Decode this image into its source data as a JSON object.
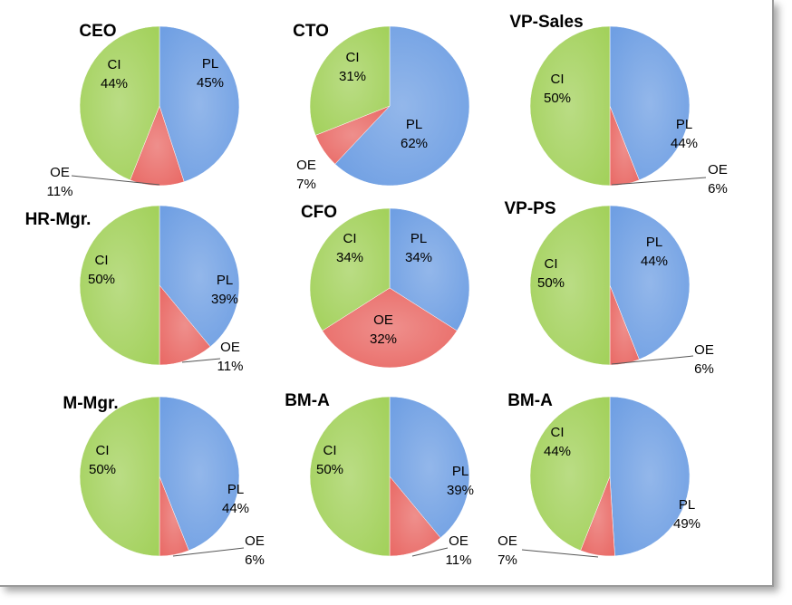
{
  "colors": {
    "PL": "#6f9fe3",
    "OE": "#e96a66",
    "CI": "#a3d15c"
  },
  "chart_data": [
    {
      "type": "pie",
      "title": "CEO",
      "slices": [
        {
          "label": "PL",
          "value": 45,
          "text": "45%"
        },
        {
          "label": "OE",
          "value": 11,
          "text": "11%"
        },
        {
          "label": "CI",
          "value": 44,
          "text": "44%"
        }
      ]
    },
    {
      "type": "pie",
      "title": "CTO",
      "slices": [
        {
          "label": "PL",
          "value": 62,
          "text": "62%"
        },
        {
          "label": "OE",
          "value": 7,
          "text": "7%"
        },
        {
          "label": "CI",
          "value": 31,
          "text": "31%"
        }
      ]
    },
    {
      "type": "pie",
      "title": "VP-Sales",
      "slices": [
        {
          "label": "PL",
          "value": 44,
          "text": "44%"
        },
        {
          "label": "OE",
          "value": 6,
          "text": "6%"
        },
        {
          "label": "CI",
          "value": 50,
          "text": "50%"
        }
      ]
    },
    {
      "type": "pie",
      "title": "HR-Mgr.",
      "slices": [
        {
          "label": "PL",
          "value": 39,
          "text": "39%"
        },
        {
          "label": "OE",
          "value": 11,
          "text": "11%"
        },
        {
          "label": "CI",
          "value": 50,
          "text": "50%"
        }
      ]
    },
    {
      "type": "pie",
      "title": "CFO",
      "slices": [
        {
          "label": "PL",
          "value": 34,
          "text": "34%"
        },
        {
          "label": "OE",
          "value": 32,
          "text": "32%"
        },
        {
          "label": "CI",
          "value": 34,
          "text": "34%"
        }
      ]
    },
    {
      "type": "pie",
      "title": "VP-PS",
      "slices": [
        {
          "label": "PL",
          "value": 44,
          "text": "44%"
        },
        {
          "label": "OE",
          "value": 6,
          "text": "6%"
        },
        {
          "label": "CI",
          "value": 50,
          "text": "50%"
        }
      ]
    },
    {
      "type": "pie",
      "title": "M-Mgr.",
      "slices": [
        {
          "label": "PL",
          "value": 44,
          "text": "44%"
        },
        {
          "label": "OE",
          "value": 6,
          "text": "6%"
        },
        {
          "label": "CI",
          "value": 50,
          "text": "50%"
        }
      ]
    },
    {
      "type": "pie",
      "title": "BM-A",
      "slices": [
        {
          "label": "PL",
          "value": 39,
          "text": "39%"
        },
        {
          "label": "OE",
          "value": 11,
          "text": "11%"
        },
        {
          "label": "CI",
          "value": 50,
          "text": "50%"
        }
      ]
    },
    {
      "type": "pie",
      "title": "BM-A",
      "slices": [
        {
          "label": "PL",
          "value": 49,
          "text": "49%"
        },
        {
          "label": "OE",
          "value": 7,
          "text": "7%"
        },
        {
          "label": "CI",
          "value": 44,
          "text": "44%"
        }
      ]
    }
  ]
}
